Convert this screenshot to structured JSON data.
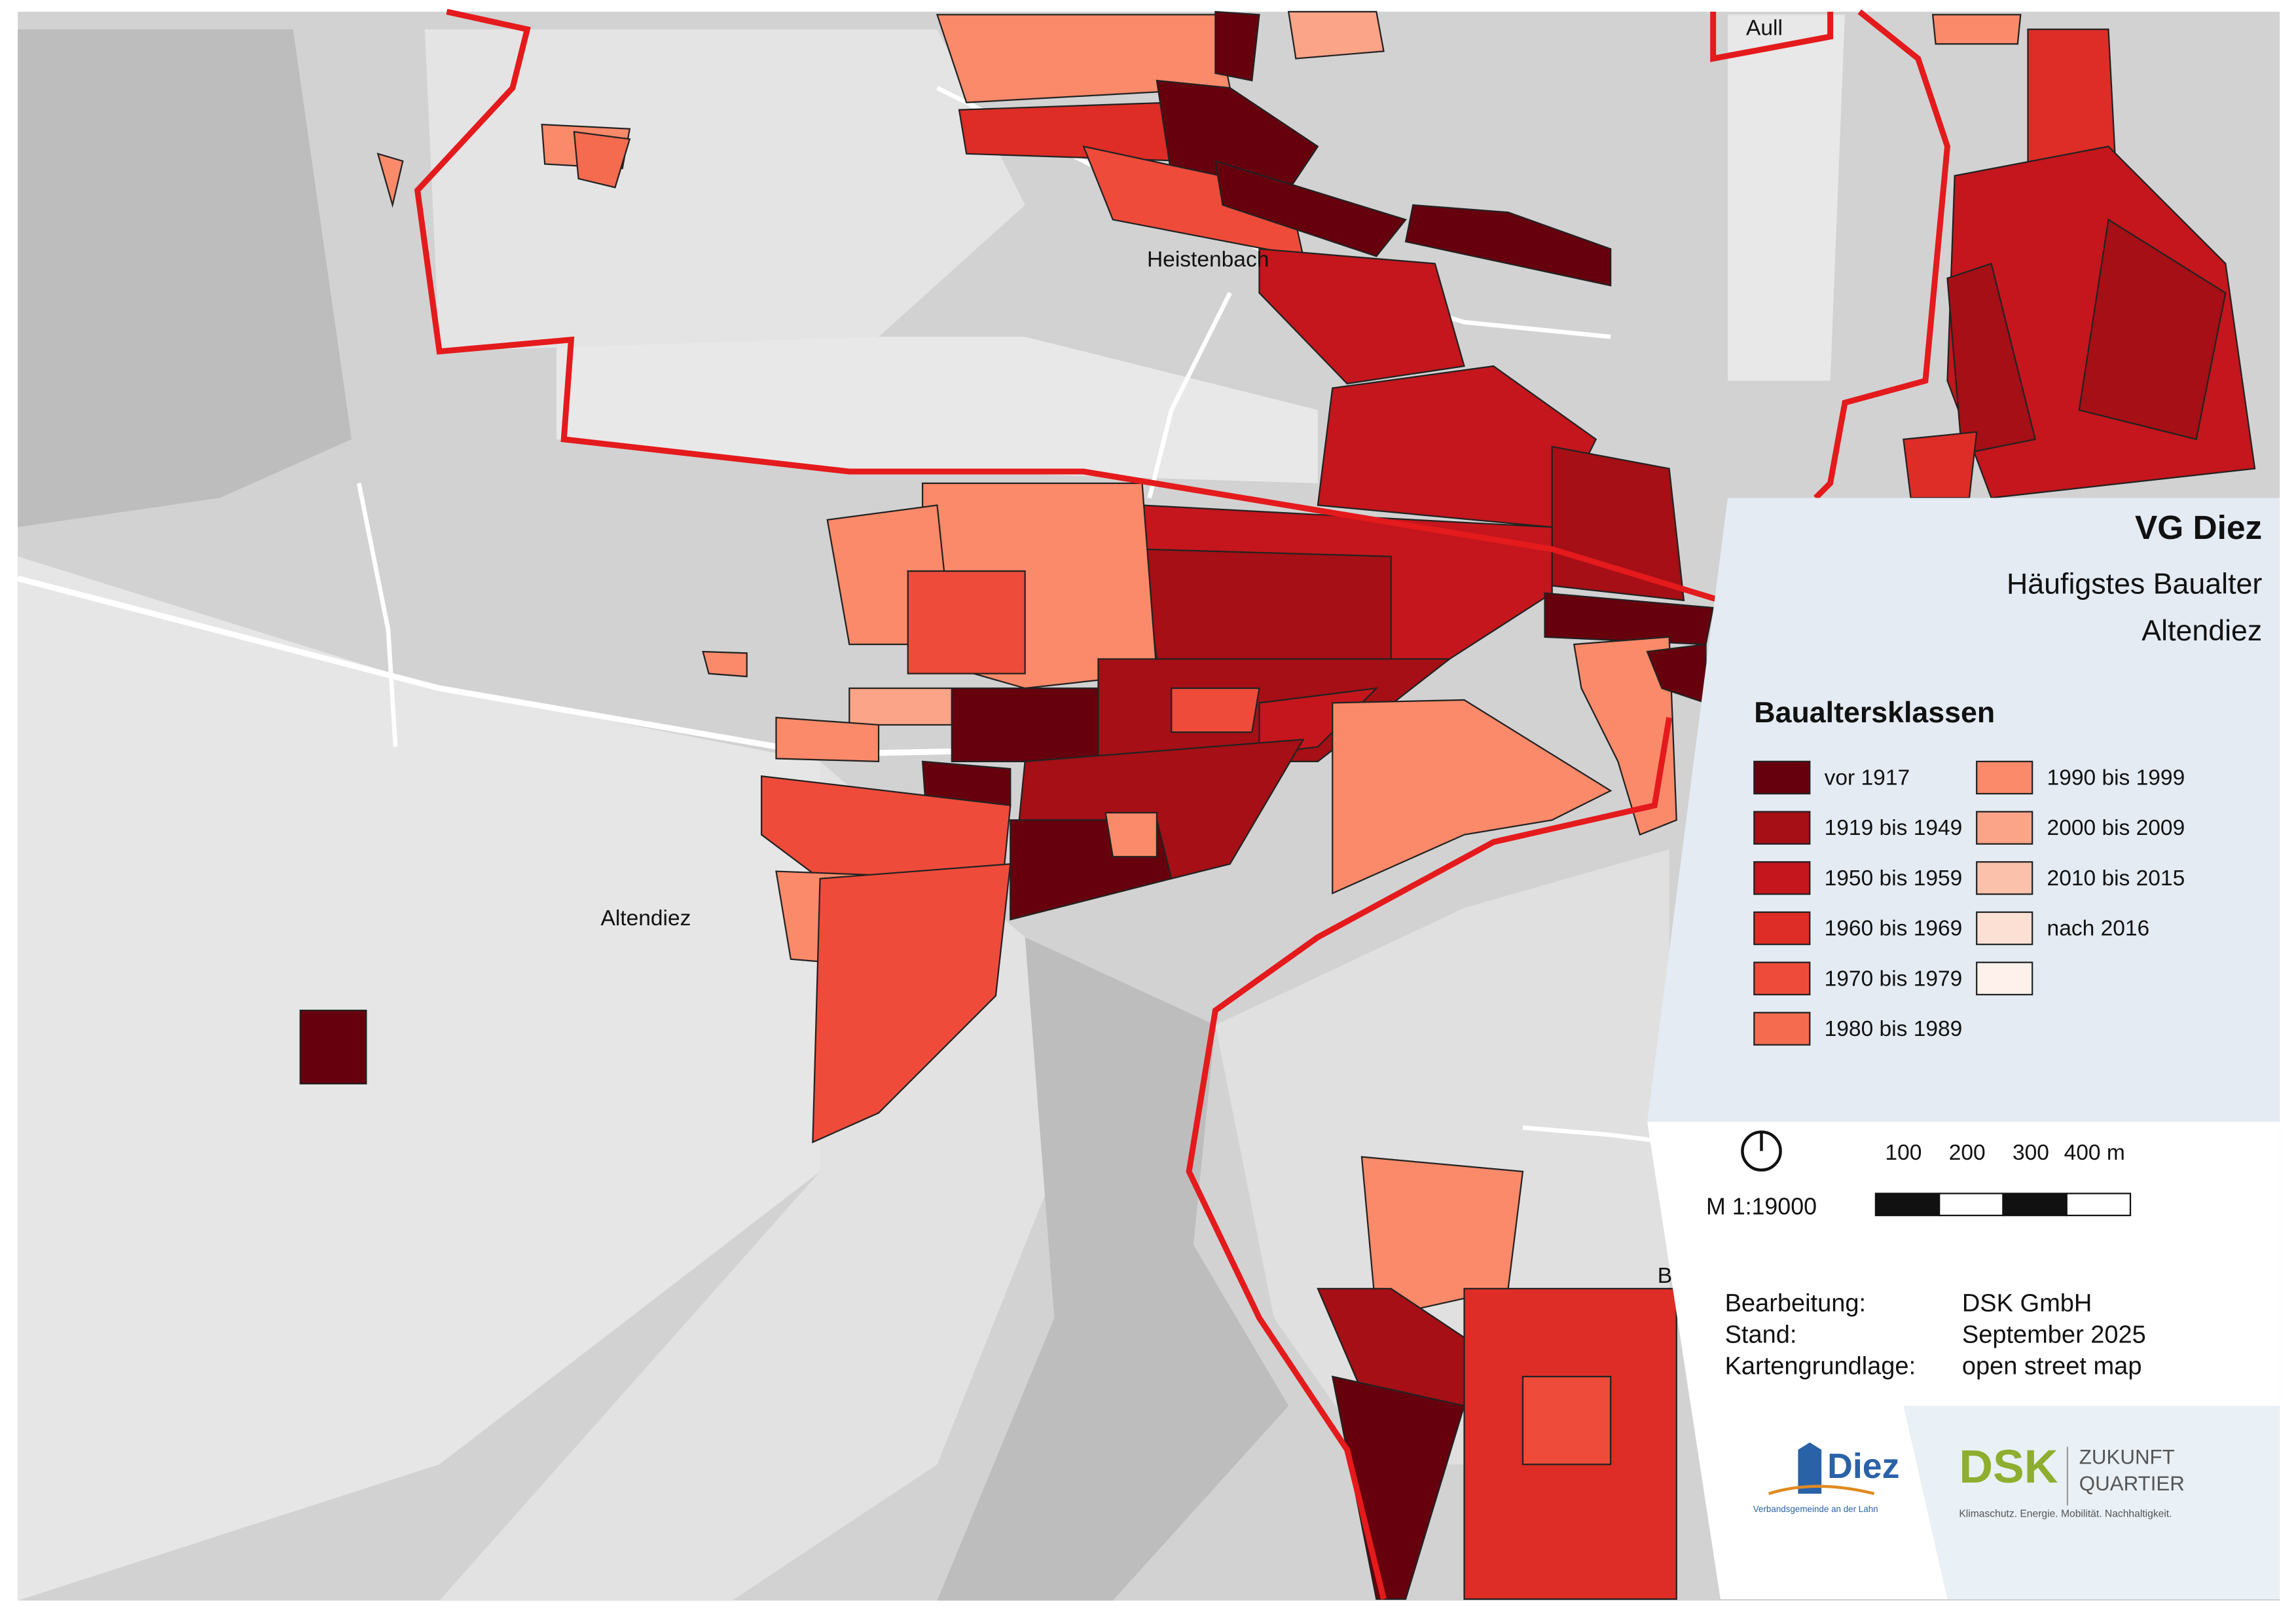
{
  "map": {
    "labels": [
      "Aull",
      "Heistenbach",
      "Altendiez",
      "B"
    ]
  },
  "panel": {
    "title": "VG Diez",
    "subtitle": [
      "Häufigstes Baualter",
      "Altendiez"
    ]
  },
  "legend": {
    "title": "Baualtersklassen",
    "classes": [
      {
        "label": "vor 1917",
        "color": "#67000d"
      },
      {
        "label": "1919 bis 1949",
        "color": "#a50f15"
      },
      {
        "label": "1950 bis 1959",
        "color": "#c4161c"
      },
      {
        "label": "1960 bis 1969",
        "color": "#de2d26"
      },
      {
        "label": "1970 bis 1979",
        "color": "#ef4b3a"
      },
      {
        "label": "1980 bis 1989",
        "color": "#f56b4f"
      },
      {
        "label": "1990 bis 1999",
        "color": "#fb8a6a"
      },
      {
        "label": "2000 bis 2009",
        "color": "#fca487"
      },
      {
        "label": "2010 bis 2015",
        "color": "#fcc1aa"
      },
      {
        "label": "nach 2016",
        "color": "#fde0d4"
      },
      {
        "color": "#fef1ec"
      }
    ]
  },
  "scale": {
    "ratio": "M 1:19000",
    "ticks": [
      "100",
      "200",
      "300",
      "400 m"
    ]
  },
  "credits": [
    {
      "label": "Bearbeitung:",
      "value": "DSK GmbH"
    },
    {
      "label": "Stand:",
      "value": "September 2025"
    },
    {
      "label": "Kartengrundlage:",
      "value": "open street map"
    }
  ],
  "logos": {
    "diez": "Diez",
    "diez_sub": "Verbandsgemeinde an der Lahn",
    "dsk": "DSK",
    "dsk_line1": "ZUKUNFT",
    "dsk_line2": "QUARTIER",
    "dsk_sub": "Klimaschutz. Energie. Mobilität. Nachhaltigkeit."
  }
}
